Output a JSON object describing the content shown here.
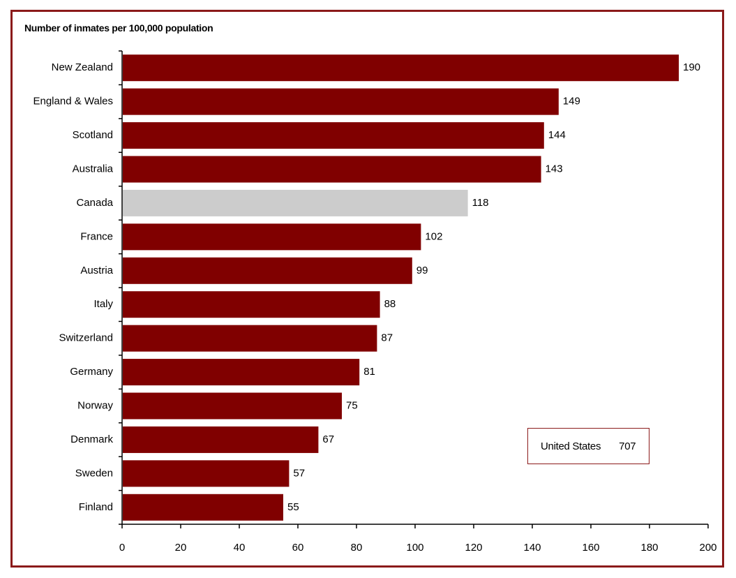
{
  "chart_data": {
    "type": "bar",
    "orientation": "horizontal",
    "title": "Number of inmates per 100,000 population",
    "categories": [
      "New Zealand",
      "England & Wales",
      "Scotland",
      "Australia",
      "Canada",
      "France",
      "Austria",
      "Italy",
      "Switzerland",
      "Germany",
      "Norway",
      "Denmark",
      "Sweden",
      "Finland"
    ],
    "values": [
      190,
      149,
      144,
      143,
      118,
      102,
      99,
      88,
      87,
      81,
      75,
      67,
      57,
      55
    ],
    "highlight": "Canada",
    "xlim": [
      0,
      200
    ],
    "xticks": [
      0,
      20,
      40,
      60,
      80,
      100,
      120,
      140,
      160,
      180,
      200
    ],
    "grid": false,
    "colors": {
      "bar": "#800000",
      "highlight": "#cccccc",
      "frame": "#8b1a1a"
    },
    "annotation": {
      "label": "United States",
      "value": "707"
    }
  }
}
